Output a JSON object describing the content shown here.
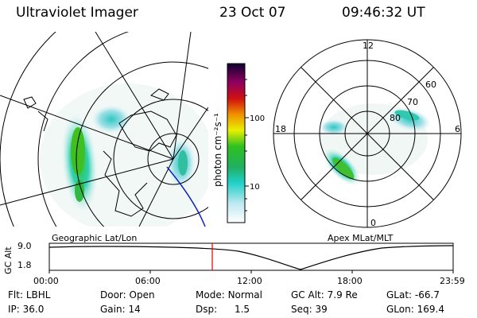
{
  "header": {
    "instrument": "Ultraviolet Imager",
    "date": "23 Oct 07",
    "time": "09:46:32 UT"
  },
  "colorbar": {
    "label": "photon cm⁻²s⁻¹",
    "tick_labels": [
      "100",
      "10"
    ]
  },
  "left_panel": {
    "label": "Geographic Lat/Lon"
  },
  "right_panel": {
    "label": "Apex MLat/MLT",
    "mlt_labels": [
      "12",
      "18",
      "6",
      "0"
    ],
    "lat_labels": [
      "60",
      "70",
      "80"
    ]
  },
  "altitude_plot": {
    "ylabel": "GC Alt",
    "y_ticks": [
      "9.0",
      "1.8"
    ],
    "x_ticks": [
      "00:00",
      "06:00",
      "12:00",
      "18:00",
      "23:59"
    ],
    "marker_color": "#e00000"
  },
  "status": {
    "row1": [
      {
        "label": "Flt:",
        "value": "LBHL"
      },
      {
        "label": "Door:",
        "value": "Open"
      },
      {
        "label": "Mode:",
        "value": "Normal"
      },
      {
        "label": "GC Alt:",
        "value": "7.9 Re"
      },
      {
        "label": "GLat:",
        "value": "-66.7"
      }
    ],
    "row2": [
      {
        "label": "IP:",
        "value": "36.0"
      },
      {
        "label": "Gain:",
        "value": "14"
      },
      {
        "label": "Dsp:",
        "value": "1.5"
      },
      {
        "label": "Seq:",
        "value": "39"
      },
      {
        "label": "GLon:",
        "value": "169.4"
      }
    ]
  }
}
